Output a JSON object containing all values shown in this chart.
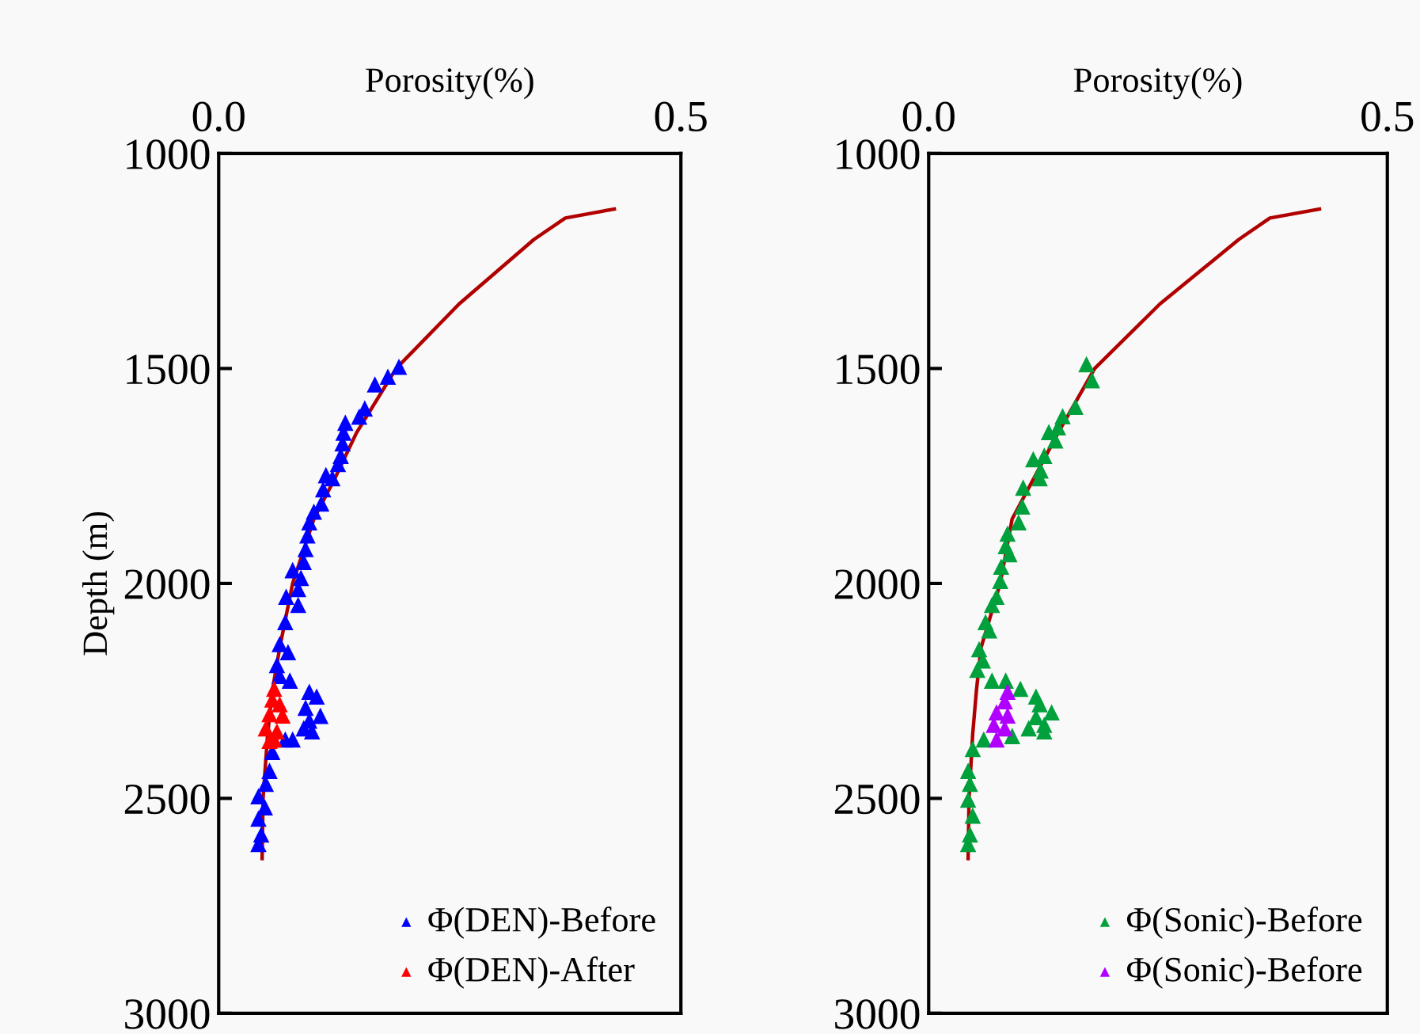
{
  "chart_data": [
    {
      "type": "scatter",
      "xlabel": "Porosity(%)",
      "ylabel": "Depth (m)",
      "xlim": [
        0,
        0.5
      ],
      "xticks": [
        {
          "value": 0,
          "label": "0.0"
        },
        0.5
      ],
      "ylim": [
        3000,
        1000
      ],
      "yticks": [
        1000,
        1500,
        2000,
        2500,
        3000
      ],
      "grid": false,
      "legend": "bottom right",
      "marker": "triangle",
      "series": [
        {
          "type": "line",
          "color": "#b00000",
          "line_style": "solid",
          "marker": "none",
          "x": [
            0.428,
            0.375,
            0.341,
            0.26,
            0.192,
            0.149,
            0.127,
            0.103,
            0.08,
            0.066,
            0.058,
            0.053,
            0.048,
            0.047
          ],
          "values": [
            1129,
            1150,
            1200,
            1350,
            1500,
            1650,
            1750,
            1850,
            2000,
            2150,
            2250,
            2350,
            2500,
            2640
          ]
        },
        {
          "name": "Φ(DEN)-Before",
          "color": "#0000ff",
          "x": [
            0.195,
            0.183,
            0.169,
            0.158,
            0.152,
            0.137,
            0.135,
            0.134,
            0.132,
            0.129,
            0.123,
            0.116,
            0.113,
            0.111,
            0.103,
            0.098,
            0.096,
            0.094,
            0.092,
            0.08,
            0.089,
            0.086,
            0.073,
            0.086,
            null,
            null,
            0.072,
            0.066,
            0.075,
            0.063,
            0.066,
            0.077,
            0.098,
            0.106,
            0.094,
            0.11,
            0.098,
            0.092,
            0.101,
            0.08,
            0.072,
            0.058,
            0.055,
            0.051,
            0.043,
            0.05,
            0.043,
            0.046,
            0.043
          ],
          "values": [
            1496,
            1519,
            1537,
            1593,
            1612,
            1626,
            1649,
            1674,
            1703,
            1722,
            1755,
            1748,
            1781,
            1814,
            1833,
            1858,
            1888,
            1920,
            1950,
            1969,
            1987,
            2013,
            2031,
            2050,
            null,
            null,
            2090,
            2141,
            2160,
            2190,
            2215,
            2226,
            2252,
            2263,
            2289,
            2308,
            2319,
            2337,
            2344,
            2363,
            2363,
            2392,
            2436,
            2466,
            2495,
            2521,
            2547,
            2584,
            2606
          ]
        },
        {
          "name": "Φ(DEN)-After",
          "color": "#ff0000",
          "x": [
            0.06,
            0.058,
            0.066,
            0.055,
            0.069,
            0.051,
            0.063,
            0.055,
            0.06
          ],
          "values": [
            2245,
            2270,
            2281,
            2304,
            2307,
            2337,
            2344,
            2366,
            2363
          ]
        }
      ]
    },
    {
      "type": "scatter",
      "xlabel": "Porosity(%)",
      "xlim": [
        0,
        0.5
      ],
      "xticks": [
        {
          "value": 0,
          "label": "0.0"
        },
        0.5
      ],
      "ylim": [
        3000,
        1000
      ],
      "yticks": [
        1000,
        1500,
        2000,
        2500,
        3000
      ],
      "grid": false,
      "legend": "bottom right",
      "marker": "triangle",
      "series": [
        {
          "type": "line",
          "color": "#b00000",
          "line_style": "solid",
          "marker": "none",
          "x": [
            0.426,
            0.372,
            0.338,
            0.252,
            0.181,
            0.141,
            0.091,
            0.078,
            0.057,
            0.052,
            0.048,
            0.044,
            0.043
          ],
          "values": [
            1129,
            1150,
            1200,
            1350,
            1500,
            1650,
            1850,
            2000,
            2150,
            2250,
            2350,
            2500,
            2640
          ]
        },
        {
          "name": "Φ(Sonic)-Before",
          "color": "#00a03c",
          "x": [
            0.172,
            0.178,
            0.16,
            0.146,
            0.141,
            0.131,
            0.138,
            0.126,
            0.114,
            0.122,
            0.121,
            0.103,
            0.102,
            0.098,
            0.086,
            0.084,
            0.088,
            0.079,
            0.078,
            0.074,
            0.069,
            null,
            null,
            0.062,
            0.066,
            0.055,
            0.059,
            0.053,
            0.069,
            0.084,
            0.1,
            0.117,
            0.121,
            0.134,
            0.117,
            0.126,
            0.109,
            0.126,
            0.091,
            0.06,
            0.048,
            0.043,
            0.045,
            0.043,
            0.048,
            0.045,
            0.043
          ],
          "values": [
            1490,
            1527,
            1589,
            1611,
            1637,
            1648,
            1667,
            1703,
            1711,
            1737,
            1755,
            1777,
            1821,
            1858,
            1884,
            1913,
            1932,
            1961,
            1994,
            2031,
            2050,
            null,
            null,
            2090,
            2109,
            2153,
            2179,
            2201,
            2226,
            2226,
            2245,
            2263,
            2281,
            2300,
            2311,
            2329,
            2337,
            2344,
            2355,
            2363,
            2385,
            2436,
            2466,
            2503,
            2540,
            2584,
            2606
          ]
        },
        {
          "name": "Φ(Sonic)-Before",
          "color": "#b000ff",
          "x": [
            0.086,
            0.083,
            0.074,
            0.086,
            0.071,
            0.083,
            0.074
          ],
          "values": [
            2252,
            2274,
            2300,
            2307,
            2329,
            2337,
            2363
          ]
        }
      ]
    }
  ]
}
